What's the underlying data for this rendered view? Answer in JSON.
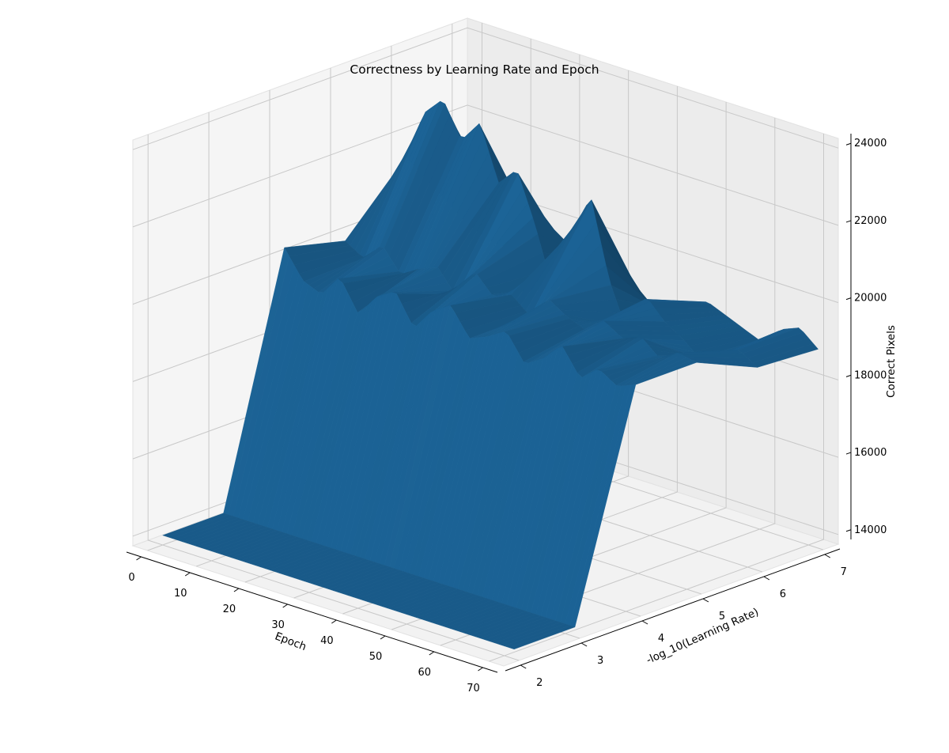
{
  "chart_data": {
    "type": "surface3d",
    "title": "Correctness by Learning Rate and Epoch",
    "xlabel": "Epoch",
    "ylabel": "-log_10(Learning Rate)",
    "zlabel": "Correct Pixels",
    "xlim": [
      -3,
      73
    ],
    "ylim": [
      1.75,
      7.25
    ],
    "zlim": [
      13750,
      24250
    ],
    "x_ticks": [
      0,
      10,
      20,
      30,
      40,
      50,
      60,
      70
    ],
    "y_ticks": [
      2,
      3,
      4,
      5,
      6,
      7
    ],
    "z_ticks": [
      14000,
      16000,
      18000,
      20000,
      22000,
      24000
    ],
    "y_values": [
      2,
      3,
      4,
      5,
      6,
      7
    ],
    "color": "#1f6fa8",
    "grid": true,
    "epochs_range": [
      0,
      72
    ],
    "rows": [
      {
        "y": 2,
        "values_by_epoch": "flat",
        "value": 14000
      },
      {
        "y": 3,
        "values_by_epoch": "flat",
        "value": 14000
      },
      {
        "y": 4,
        "min": 19100,
        "max": 20400,
        "typical": 19750
      },
      {
        "y": 5,
        "min": 19300,
        "max": 20250,
        "typical": 19800
      },
      {
        "y": 6,
        "min": 18700,
        "max": 23400,
        "typical": 21300
      },
      {
        "y": 7,
        "min": 18200,
        "max": 19500,
        "typical": 18900
      }
    ],
    "row7_series": [
      19200,
      19000,
      18900,
      19500,
      19300,
      19000,
      18800,
      19400,
      19100,
      18700,
      18300,
      18500,
      18900,
      19200,
      19000,
      18800,
      18600,
      19100,
      19300,
      18900
    ],
    "row6_series": [
      21500,
      22800,
      23300,
      22400,
      23000,
      21600,
      22100,
      20800,
      19200,
      21000,
      22000,
      20000,
      18800,
      19900,
      19400,
      19100,
      18700,
      19000,
      19300,
      19000
    ],
    "row5_series": [
      19900,
      19600,
      20100,
      19500,
      19800,
      20000,
      19400,
      20200,
      19700,
      19900,
      19500,
      20100,
      19800,
      19600,
      20000,
      19700,
      19900,
      19500,
      19800,
      19700
    ],
    "row4_series": [
      20300,
      19600,
      19400,
      20000,
      19200,
      19800,
      20100,
      19300,
      19900,
      20200,
      19500,
      19700,
      20000,
      19300,
      19600,
      20100,
      19400,
      19800,
      19500,
      19700
    ]
  }
}
